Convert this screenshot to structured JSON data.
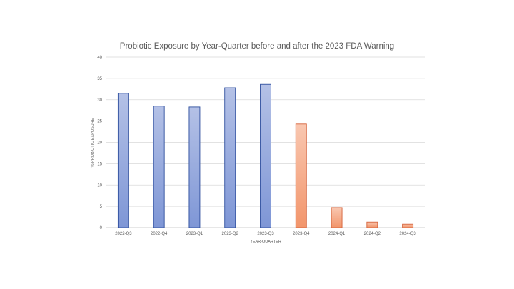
{
  "chart_data": {
    "type": "bar",
    "title": "Probiotic Exposure by Year-Quarter before and after the 2023 FDA Warning",
    "xlabel": "YEAR-QUARTER",
    "ylabel": "% PROBIOTIC EXPOSURE",
    "ylim": [
      0,
      40
    ],
    "yticks": [
      0,
      5,
      10,
      15,
      20,
      25,
      30,
      35,
      40
    ],
    "grid": true,
    "legend": "none",
    "categories": [
      "2022-Q3",
      "2022-Q4",
      "2023-Q1",
      "2023-Q2",
      "2023-Q3",
      "2023-Q4",
      "2024-Q1",
      "2024-Q2",
      "2024-Q3"
    ],
    "series": [
      {
        "values": [
          31.5,
          28.5,
          28.3,
          32.8,
          33.6,
          null,
          null,
          null,
          null
        ],
        "fill_top": "#b4c1e6",
        "fill_bottom": "#7e96d6",
        "stroke": "#2f4f9e"
      },
      {
        "values": [
          null,
          null,
          null,
          null,
          null,
          24.3,
          4.7,
          1.3,
          0.8
        ],
        "fill_top": "#f9c7b0",
        "fill_bottom": "#f2956b",
        "stroke": "#d5623a"
      }
    ]
  }
}
